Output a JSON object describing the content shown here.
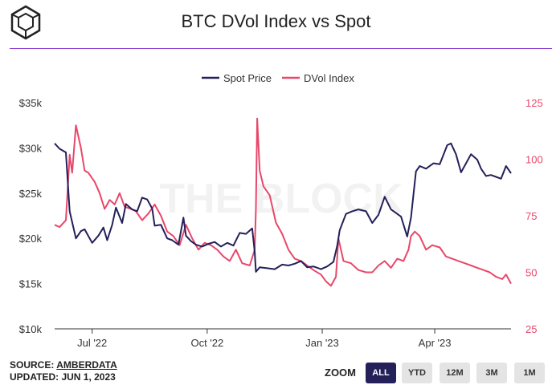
{
  "header": {
    "title": "BTC DVol Index vs Spot",
    "logo_icon": "theblock-cube-icon"
  },
  "watermark": "THE BLOCK",
  "footer": {
    "source_prefix": "SOURCE:",
    "source_name": "AMBERDATA",
    "updated": "UPDATED: JUN 1, 2023"
  },
  "zoom": {
    "label": "ZOOM",
    "buttons": [
      "ALL",
      "YTD",
      "12M",
      "3M",
      "1M"
    ],
    "active": "ALL"
  },
  "colors": {
    "spot": "#24205a",
    "dvol": "#e8476a",
    "accent": "#8b3fd0"
  },
  "chart_data": {
    "type": "line",
    "title": "BTC DVol Index vs Spot",
    "legend_placement": "top-center",
    "grid": false,
    "x_ticks": [
      "Jul '22",
      "Oct '22",
      "Jan '23",
      "Apr '23"
    ],
    "x_tick_dates": [
      "2022-07-01",
      "2022-10-01",
      "2023-01-01",
      "2023-04-01"
    ],
    "xlim": [
      "2022-06-01",
      "2023-06-01"
    ],
    "y_left": {
      "ticks": [
        "$10k",
        "$15k",
        "$20k",
        "$25k",
        "$30k",
        "$35k"
      ],
      "tick_values": [
        10000,
        15000,
        20000,
        25000,
        30000,
        35000
      ],
      "ylim": [
        10000,
        35000
      ]
    },
    "y_right": {
      "ticks": [
        "25",
        "50",
        "75",
        "100",
        "125"
      ],
      "tick_values": [
        25,
        50,
        75,
        100,
        125
      ],
      "ylim": [
        25,
        125
      ]
    },
    "series": [
      {
        "name": "Spot Price",
        "axis": "left",
        "x": [
          "2022-06-01",
          "2022-06-05",
          "2022-06-10",
          "2022-06-13",
          "2022-06-15",
          "2022-06-18",
          "2022-06-22",
          "2022-06-25",
          "2022-07-01",
          "2022-07-06",
          "2022-07-10",
          "2022-07-13",
          "2022-07-17",
          "2022-07-20",
          "2022-07-25",
          "2022-07-28",
          "2022-08-02",
          "2022-08-06",
          "2022-08-10",
          "2022-08-14",
          "2022-08-18",
          "2022-08-20",
          "2022-08-25",
          "2022-08-30",
          "2022-09-03",
          "2022-09-08",
          "2022-09-12",
          "2022-09-14",
          "2022-09-18",
          "2022-09-22",
          "2022-09-27",
          "2022-10-02",
          "2022-10-07",
          "2022-10-12",
          "2022-10-17",
          "2022-10-22",
          "2022-10-27",
          "2022-11-01",
          "2022-11-06",
          "2022-11-08",
          "2022-11-09",
          "2022-11-12",
          "2022-11-18",
          "2022-11-24",
          "2022-11-30",
          "2022-12-05",
          "2022-12-10",
          "2022-12-15",
          "2022-12-20",
          "2022-12-25",
          "2022-12-31",
          "2023-01-05",
          "2023-01-10",
          "2023-01-13",
          "2023-01-15",
          "2023-01-20",
          "2023-01-25",
          "2023-01-30",
          "2023-02-05",
          "2023-02-10",
          "2023-02-15",
          "2023-02-20",
          "2023-02-25",
          "2023-03-05",
          "2023-03-10",
          "2023-03-13",
          "2023-03-17",
          "2023-03-20",
          "2023-03-25",
          "2023-03-31",
          "2023-04-05",
          "2023-04-11",
          "2023-04-14",
          "2023-04-18",
          "2023-04-22",
          "2023-04-26",
          "2023-04-30",
          "2023-05-05",
          "2023-05-08",
          "2023-05-12",
          "2023-05-16",
          "2023-05-20",
          "2023-05-24",
          "2023-05-28",
          "2023-06-01"
        ],
        "y": [
          30500,
          29900,
          29500,
          23000,
          21800,
          20000,
          20800,
          21000,
          19500,
          20300,
          21200,
          19800,
          21500,
          23400,
          21700,
          23800,
          23200,
          23000,
          24500,
          24300,
          23300,
          21400,
          21500,
          20000,
          19800,
          19300,
          22300,
          20300,
          19700,
          19300,
          19100,
          19400,
          19600,
          19100,
          19500,
          19200,
          20600,
          20500,
          21100,
          18500,
          16300,
          16800,
          16700,
          16600,
          17100,
          17000,
          17200,
          17500,
          16800,
          16900,
          16600,
          16900,
          17400,
          19200,
          20900,
          22700,
          23000,
          23200,
          23000,
          21700,
          22600,
          24600,
          23200,
          22400,
          20200,
          22300,
          27400,
          28000,
          27700,
          28300,
          28200,
          30300,
          30500,
          29300,
          27300,
          28300,
          29300,
          28700,
          27700,
          26900,
          27000,
          26800,
          26600,
          28000,
          27200
        ]
      },
      {
        "name": "DVol Index",
        "axis": "right",
        "x": [
          "2022-06-01",
          "2022-06-05",
          "2022-06-10",
          "2022-06-13",
          "2022-06-15",
          "2022-06-18",
          "2022-06-22",
          "2022-06-25",
          "2022-06-28",
          "2022-07-03",
          "2022-07-07",
          "2022-07-11",
          "2022-07-15",
          "2022-07-19",
          "2022-07-23",
          "2022-07-27",
          "2022-08-01",
          "2022-08-05",
          "2022-08-10",
          "2022-08-15",
          "2022-08-20",
          "2022-08-25",
          "2022-08-30",
          "2022-09-04",
          "2022-09-09",
          "2022-09-14",
          "2022-09-19",
          "2022-09-24",
          "2022-09-29",
          "2022-10-04",
          "2022-10-09",
          "2022-10-14",
          "2022-10-19",
          "2022-10-24",
          "2022-10-29",
          "2022-11-04",
          "2022-11-08",
          "2022-11-09",
          "2022-11-10",
          "2022-11-12",
          "2022-11-15",
          "2022-11-20",
          "2022-11-25",
          "2022-11-30",
          "2022-12-05",
          "2022-12-10",
          "2022-12-15",
          "2022-12-20",
          "2022-12-25",
          "2022-12-31",
          "2023-01-04",
          "2023-01-08",
          "2023-01-12",
          "2023-01-14",
          "2023-01-18",
          "2023-01-24",
          "2023-01-30",
          "2023-02-05",
          "2023-02-10",
          "2023-02-15",
          "2023-02-20",
          "2023-02-25",
          "2023-03-02",
          "2023-03-07",
          "2023-03-11",
          "2023-03-13",
          "2023-03-16",
          "2023-03-20",
          "2023-03-25",
          "2023-03-30",
          "2023-04-05",
          "2023-04-10",
          "2023-04-15",
          "2023-04-20",
          "2023-04-25",
          "2023-04-30",
          "2023-05-05",
          "2023-05-10",
          "2023-05-15",
          "2023-05-20",
          "2023-05-25",
          "2023-05-28",
          "2023-06-01"
        ],
        "y": [
          71,
          70,
          73,
          102,
          94,
          115,
          105,
          95,
          94,
          90,
          85,
          78,
          82,
          80,
          85,
          79,
          78,
          77,
          73,
          76,
          80,
          75,
          68,
          66,
          62,
          71,
          65,
          60,
          63,
          62,
          60,
          57,
          55,
          60,
          54,
          53,
          60,
          78,
          118,
          95,
          88,
          84,
          72,
          67,
          60,
          56,
          55,
          53,
          51,
          49,
          46,
          44,
          48,
          65,
          55,
          54,
          51,
          50,
          50,
          53,
          55,
          52,
          56,
          55,
          60,
          66,
          68,
          66,
          60,
          62,
          61,
          57,
          56,
          55,
          54,
          53,
          52,
          51,
          50,
          48,
          47,
          49,
          45
        ]
      }
    ]
  }
}
